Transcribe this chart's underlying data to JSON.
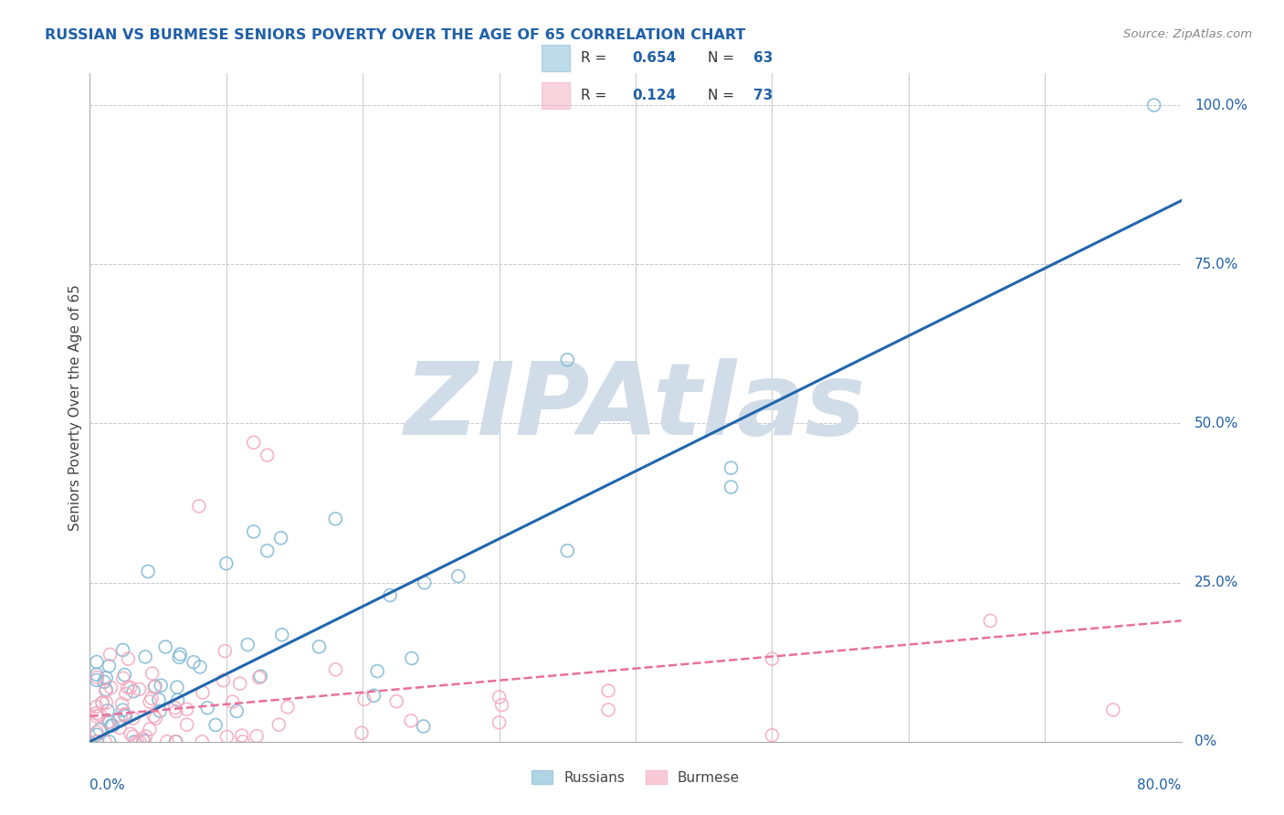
{
  "title": "RUSSIAN VS BURMESE SENIORS POVERTY OVER THE AGE OF 65 CORRELATION CHART",
  "source": "Source: ZipAtlas.com",
  "ylabel": "Seniors Poverty Over the Age of 65",
  "russian_R": 0.654,
  "russian_N": 63,
  "burmese_R": 0.124,
  "burmese_N": 73,
  "russian_color": "#7eb8d4",
  "burmese_color": "#f4a8be",
  "russian_line_color": "#2166ac",
  "burmese_line_color": "#e8709a",
  "background_color": "#ffffff",
  "grid_color": "#c8c8c8",
  "watermark_color": "#d0dde8",
  "title_color": "#2060a8",
  "label_color": "#2060a8",
  "source_color": "#888888",
  "xlim": [
    0.0,
    0.8
  ],
  "ylim": [
    0.0,
    1.05
  ],
  "ytick_values": [
    0.0,
    0.25,
    0.5,
    0.75,
    1.0
  ],
  "ytick_labels": [
    "0%",
    "25.0%",
    "50.0%",
    "75.0%",
    "100.0%"
  ],
  "russian_trend": [
    0.0,
    0.85
  ],
  "burmese_trend_start": 0.04,
  "burmese_trend_end": 0.2
}
